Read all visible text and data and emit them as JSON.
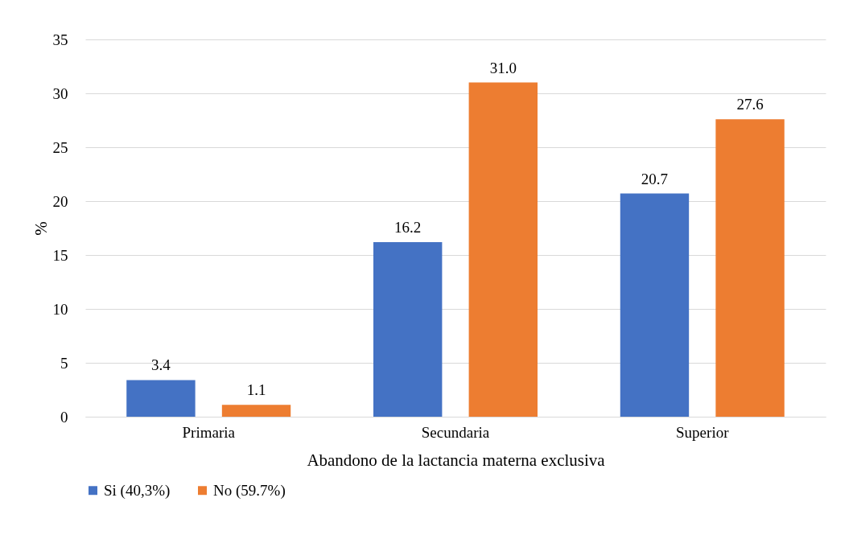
{
  "chart_data": {
    "type": "bar",
    "xlabel": "Abandono de la lactancia materna exclusiva",
    "ylabel": "%",
    "categories": [
      "Primaria",
      "Secundaria",
      "Superior"
    ],
    "series": [
      {
        "name": "Si (40,3%)",
        "color": "#4472c4",
        "values": [
          3.4,
          16.2,
          20.7
        ],
        "value_labels": [
          "3.4",
          "16.2",
          "20.7"
        ]
      },
      {
        "name": "No (59.7%)",
        "color": "#ed7d31",
        "values": [
          1.1,
          31.0,
          27.6
        ],
        "value_labels": [
          "1.1",
          "31.0",
          "27.6"
        ]
      }
    ],
    "ylim": [
      0,
      35
    ],
    "yticks": [
      0,
      5,
      10,
      15,
      20,
      25,
      30,
      35
    ],
    "grid": "y",
    "legend": "bottom"
  }
}
